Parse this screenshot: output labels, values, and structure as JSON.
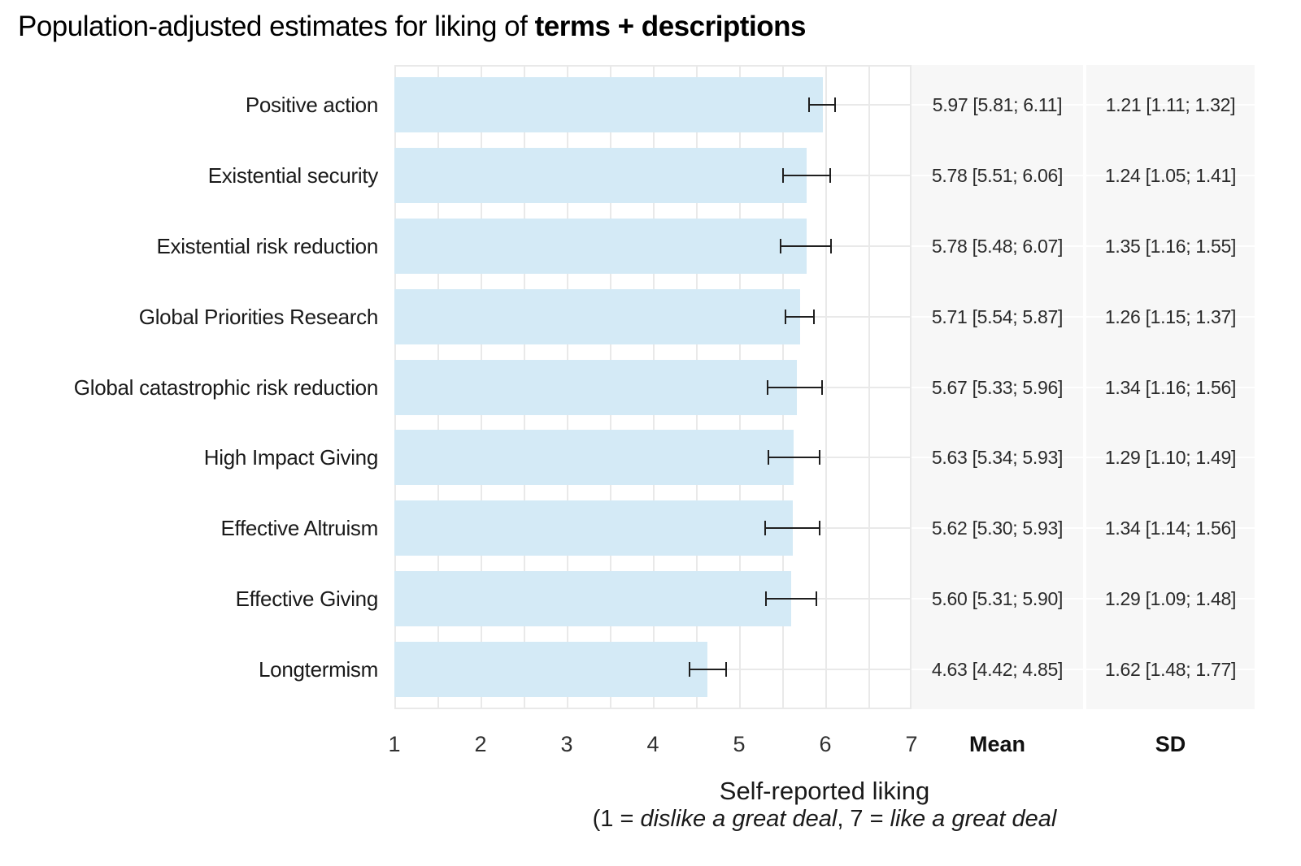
{
  "title": {
    "regular": "Population-adjusted estimates for liking of ",
    "bold": "terms + descriptions"
  },
  "column_headers": {
    "mean": "Mean",
    "sd": "SD"
  },
  "x_axis": {
    "title": "Self-reported liking",
    "subtitle": {
      "p1": "(1 = ",
      "p2": "dislike a great deal",
      "p3": ", 7 = ",
      "p4": "like a great deal"
    },
    "ticks": [
      "1",
      "2",
      "3",
      "4",
      "5",
      "6",
      "7"
    ]
  },
  "chart_data": {
    "type": "bar",
    "orientation": "horizontal",
    "title": "Population-adjusted estimates for liking of terms + descriptions",
    "xlabel": "Self-reported liking (1 = dislike a great deal, 7 = like a great deal",
    "xlim": [
      1,
      7
    ],
    "grid": "major+minor vertical every 0.5, horizontal at row centers",
    "categories": [
      "Positive action",
      "Existential security",
      "Existential risk reduction",
      "Global Priorities Research",
      "Global catastrophic risk reduction",
      "High Impact Giving",
      "Effective Altruism",
      "Effective Giving",
      "Longtermism"
    ],
    "series": [
      {
        "name": "Mean",
        "values": [
          5.97,
          5.78,
          5.78,
          5.71,
          5.67,
          5.63,
          5.62,
          5.6,
          4.63
        ],
        "ci_low": [
          5.81,
          5.51,
          5.48,
          5.54,
          5.33,
          5.34,
          5.3,
          5.31,
          4.42
        ],
        "ci_high": [
          6.11,
          6.06,
          6.07,
          5.87,
          5.96,
          5.93,
          5.93,
          5.9,
          4.85
        ]
      },
      {
        "name": "SD",
        "values": [
          1.21,
          1.24,
          1.35,
          1.26,
          1.34,
          1.29,
          1.34,
          1.29,
          1.62
        ],
        "ci_low": [
          1.11,
          1.05,
          1.16,
          1.15,
          1.16,
          1.1,
          1.14,
          1.09,
          1.48
        ],
        "ci_high": [
          1.32,
          1.41,
          1.55,
          1.37,
          1.56,
          1.49,
          1.56,
          1.48,
          1.77
        ]
      }
    ],
    "mean_labels": [
      "5.97 [5.81; 6.11]",
      "5.78 [5.51; 6.06]",
      "5.78 [5.48; 6.07]",
      "5.71 [5.54; 5.87]",
      "5.67 [5.33; 5.96]",
      "5.63 [5.34; 5.93]",
      "5.62 [5.30; 5.93]",
      "5.60 [5.31; 5.90]",
      "4.63 [4.42; 4.85]"
    ],
    "sd_labels": [
      "1.21 [1.11; 1.32]",
      "1.24 [1.05; 1.41]",
      "1.35 [1.16; 1.55]",
      "1.26 [1.15; 1.37]",
      "1.34 [1.16; 1.56]",
      "1.29 [1.10; 1.49]",
      "1.34 [1.14; 1.56]",
      "1.29 [1.09; 1.48]",
      "1.62 [1.48; 1.77]"
    ]
  },
  "colors": {
    "bar_fill": "#d4eaf6",
    "panel_grid": "#e9e9e9",
    "facet_background": "#f7f7f7",
    "facet_grid": "#ffffff",
    "error_bar": "#1f1f1f",
    "text": "#1a1a1a"
  }
}
